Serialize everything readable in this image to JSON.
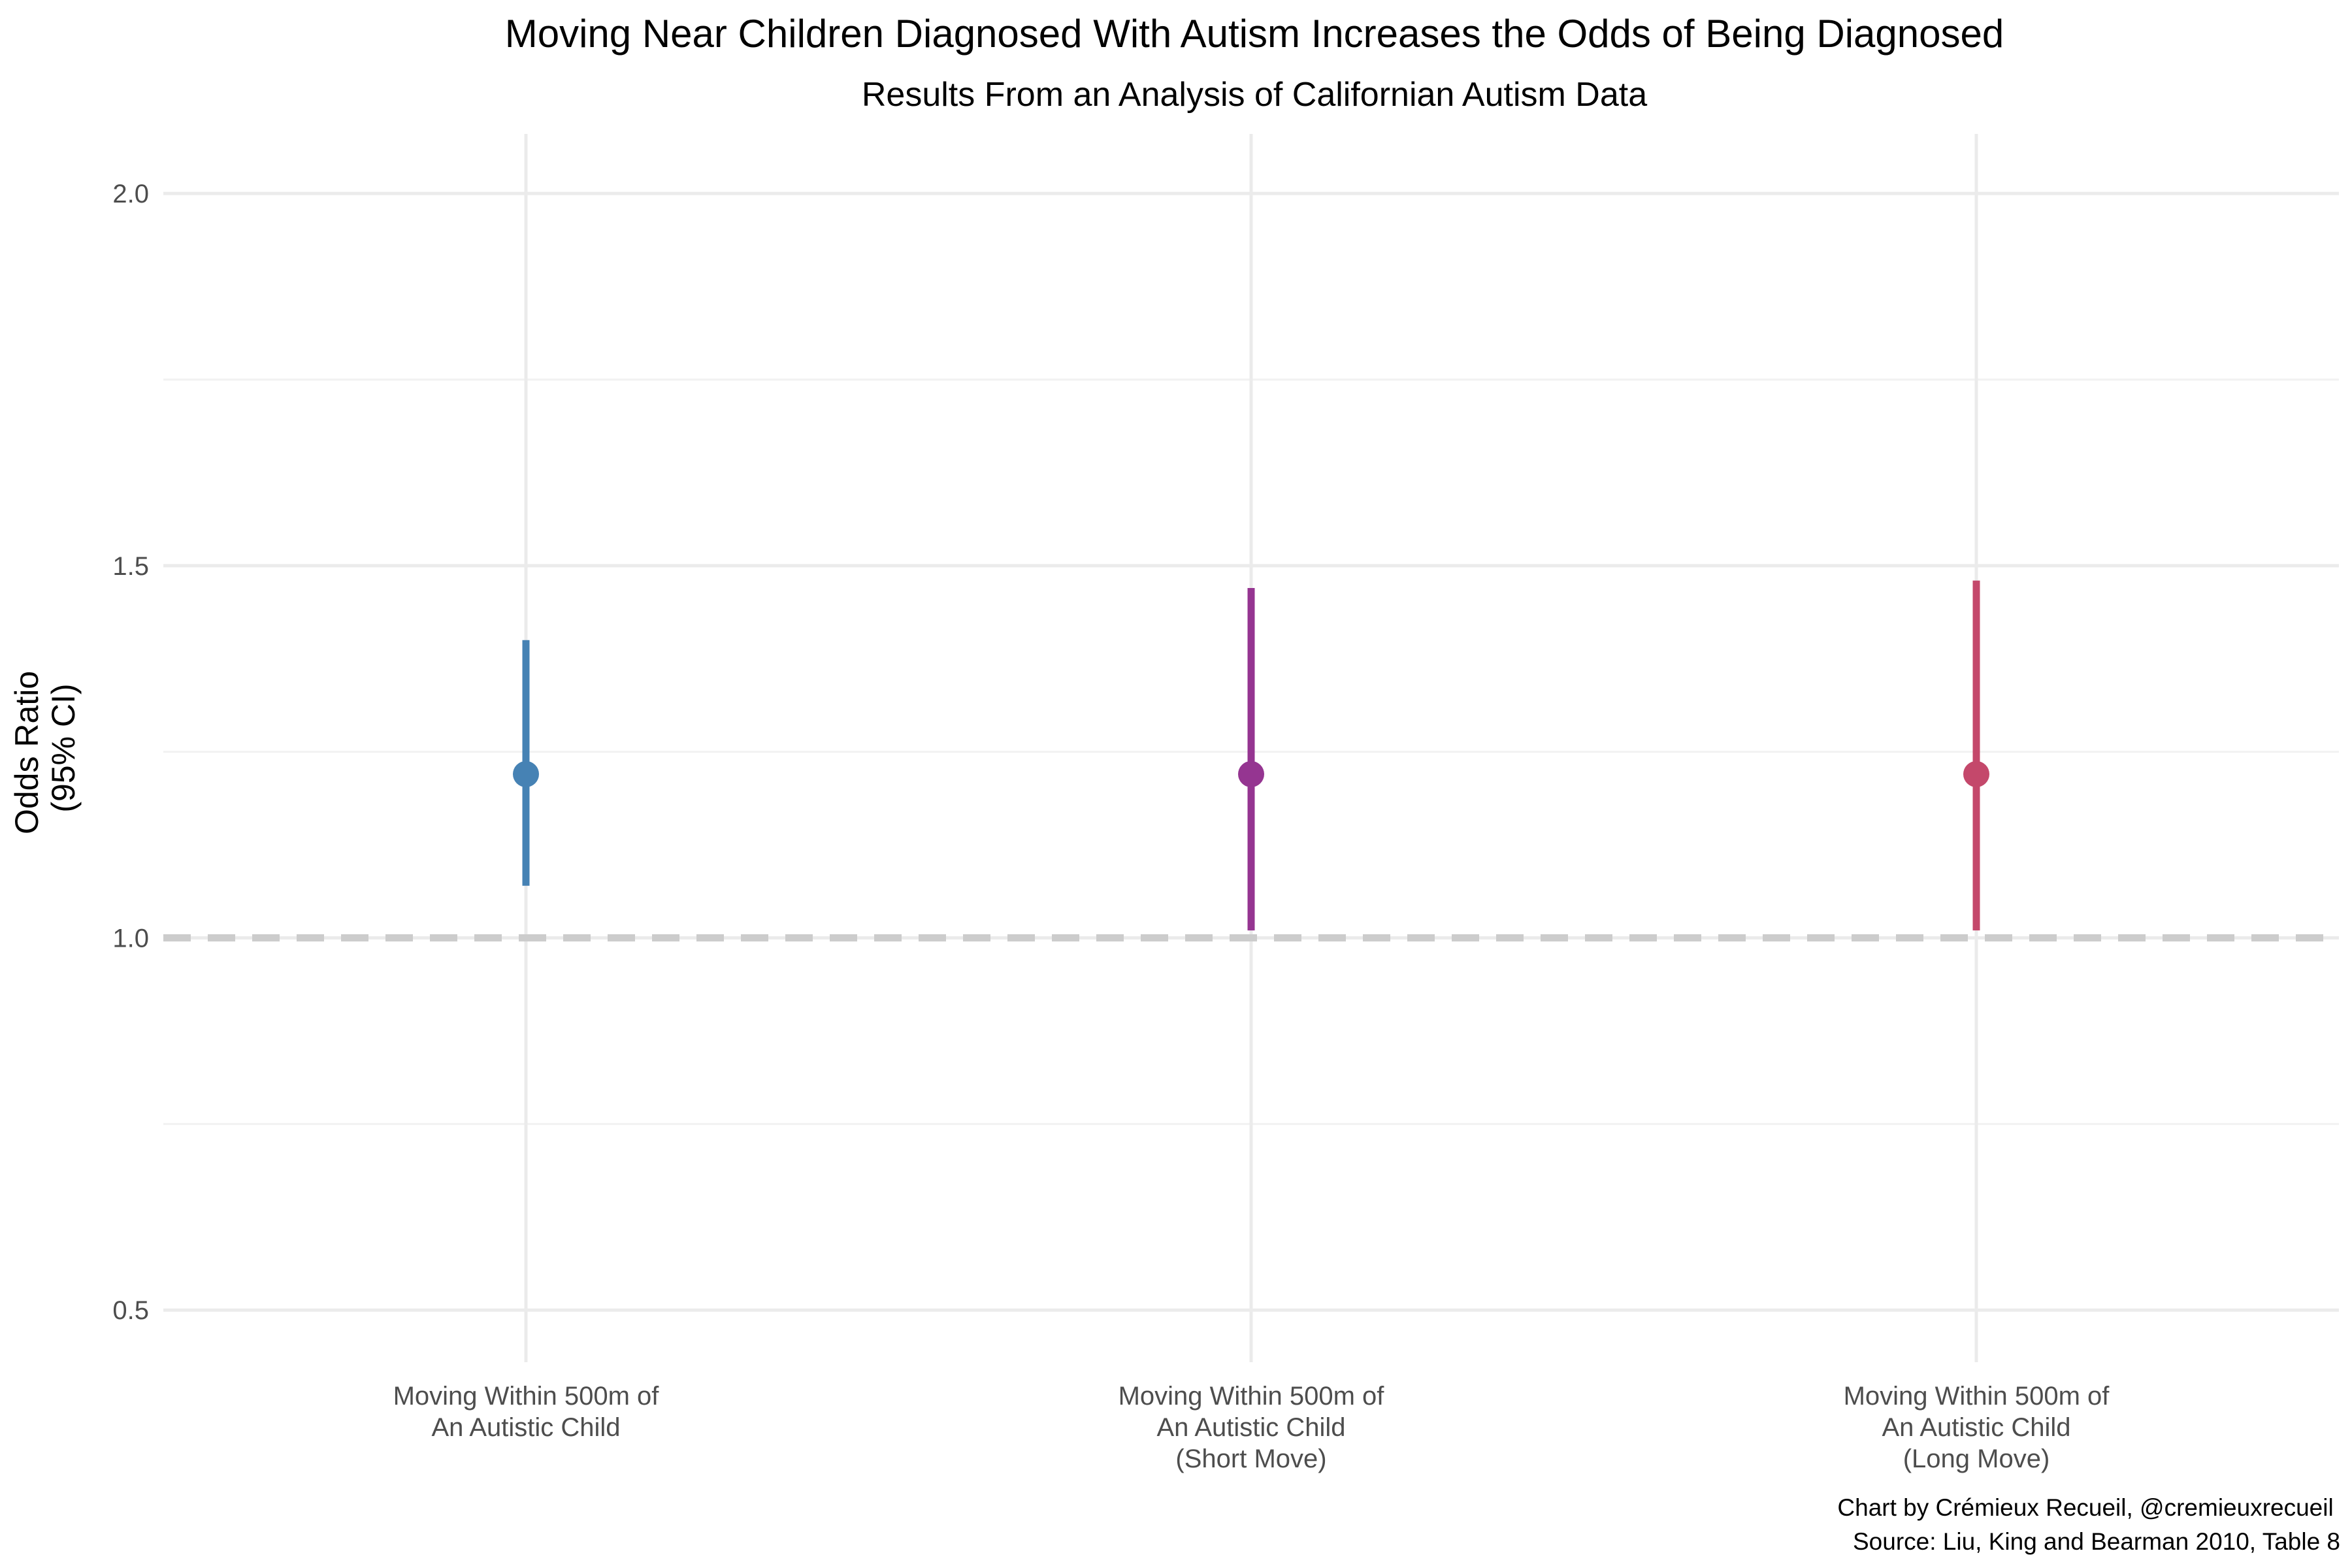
{
  "chart_data": {
    "type": "scatter",
    "title": "Moving Near Children Diagnosed With Autism Increases the Odds of Being Diagnosed",
    "subtitle": "Results From an Analysis of Californian Autism Data",
    "ylabel_lines": [
      "Odds Ratio",
      "(95% CI)"
    ],
    "xlabel": "",
    "ylim": [
      0.43,
      2.08
    ],
    "y_ticks": [
      "0.5",
      "1.0",
      "1.5",
      "2.0"
    ],
    "y_tick_values": [
      0.5,
      1.0,
      1.5,
      2.0
    ],
    "y_minor_grid": [
      0.75,
      1.25,
      1.75
    ],
    "grid": true,
    "reference_line": {
      "y": 1.0,
      "style": "dashed",
      "color": "#cccccc"
    },
    "categories": [
      {
        "label_lines": [
          "Moving Within 500m of",
          "An Autistic Child"
        ],
        "estimate": 1.22,
        "lower": 1.07,
        "upper": 1.4,
        "color": "#4682b4"
      },
      {
        "label_lines": [
          "Moving Within 500m of",
          "An Autistic Child",
          "(Short Move)"
        ],
        "estimate": 1.22,
        "lower": 1.01,
        "upper": 1.47,
        "color": "#953591"
      },
      {
        "label_lines": [
          "Moving Within 500m of",
          "An Autistic Child",
          "(Long Move)"
        ],
        "estimate": 1.22,
        "lower": 1.01,
        "upper": 1.48,
        "color": "#c4486b"
      }
    ],
    "caption_lines": [
      "Chart by Crémieux Recueil, @cremieuxrecueil",
      "Source: Liu, King and Bearman 2010, Table 8"
    ]
  }
}
